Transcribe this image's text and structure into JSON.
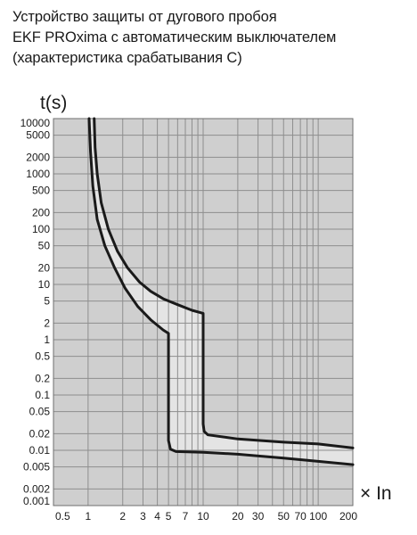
{
  "title_lines": [
    "Устройство защиты от дугового пробоя",
    "EKF PROxima с автоматическим выключателем",
    "(характеристика срабатывания С)"
  ],
  "colors": {
    "plot_background": "#cfcfcf",
    "band_fill": "#e4e4e4",
    "grid": "#8e8e8e",
    "curve": "#1a1a1a"
  },
  "chart_data": {
    "type": "area",
    "title": "Устройство защиты от дугового пробоя EKF PROxima с автоматическим выключателем (характеристика срабатывания С)",
    "ylabel": "t(s)",
    "xlabel": "× In",
    "x_scale": "log",
    "y_scale": "log",
    "xlim": [
      0.5,
      200
    ],
    "ylim": [
      0.001,
      10000
    ],
    "grid": true,
    "legend": "none",
    "x_ticks": [
      "0.5",
      "1",
      "2",
      "3",
      "4",
      "5",
      "7",
      "10",
      "20",
      "30",
      "50",
      "70",
      "100",
      "200"
    ],
    "x_tick_values": [
      0.5,
      1,
      2,
      3,
      4,
      5,
      7,
      10,
      20,
      30,
      50,
      70,
      100,
      200
    ],
    "y_ticks": [
      "10000",
      "5000",
      "2000",
      "1000",
      "500",
      "200",
      "100",
      "50",
      "20",
      "10",
      "5",
      "2",
      "1",
      "0.5",
      "0.2",
      "0.1",
      "0.05",
      "0.02",
      "0.01",
      "0.005",
      "0.002",
      "0.001"
    ],
    "y_tick_values": [
      10000,
      5000,
      2000,
      1000,
      500,
      200,
      100,
      50,
      20,
      10,
      5,
      2,
      1,
      0.5,
      0.2,
      0.1,
      0.05,
      0.02,
      0.01,
      0.005,
      0.002,
      0.001
    ],
    "x_grid_values": [
      0.5,
      1,
      2,
      3,
      4,
      5,
      6,
      7,
      8,
      9,
      10,
      20,
      30,
      40,
      50,
      60,
      70,
      80,
      90,
      100,
      200
    ],
    "y_grid_values": [
      0.001,
      0.002,
      0.005,
      0.01,
      0.02,
      0.05,
      0.1,
      0.2,
      0.5,
      1,
      2,
      5,
      10,
      20,
      50,
      100,
      200,
      500,
      1000,
      2000,
      5000,
      10000
    ],
    "series": [
      {
        "role": "upper",
        "x": [
          1.13,
          1.15,
          1.2,
          1.3,
          1.5,
          1.8,
          2.2,
          2.8,
          3.5,
          4.5,
          6,
          8,
          10,
          10,
          10.2,
          11,
          20,
          50,
          100,
          200
        ],
        "y": [
          10000,
          3000,
          1000,
          300,
          100,
          40,
          20,
          11,
          7.5,
          5.5,
          4.3,
          3.4,
          3,
          0.03,
          0.022,
          0.019,
          0.016,
          0.014,
          0.013,
          0.011
        ]
      },
      {
        "role": "lower",
        "x": [
          1.02,
          1.05,
          1.1,
          1.2,
          1.4,
          1.7,
          2.1,
          2.7,
          3.5,
          4.5,
          5,
          5,
          5.2,
          5.8,
          10,
          20,
          50,
          100,
          200
        ],
        "y": [
          10000,
          2500,
          600,
          150,
          50,
          20,
          8.5,
          4,
          2.3,
          1.5,
          1.3,
          0.015,
          0.0105,
          0.0095,
          0.0092,
          0.0085,
          0.0072,
          0.0063,
          0.0055
        ]
      }
    ]
  }
}
